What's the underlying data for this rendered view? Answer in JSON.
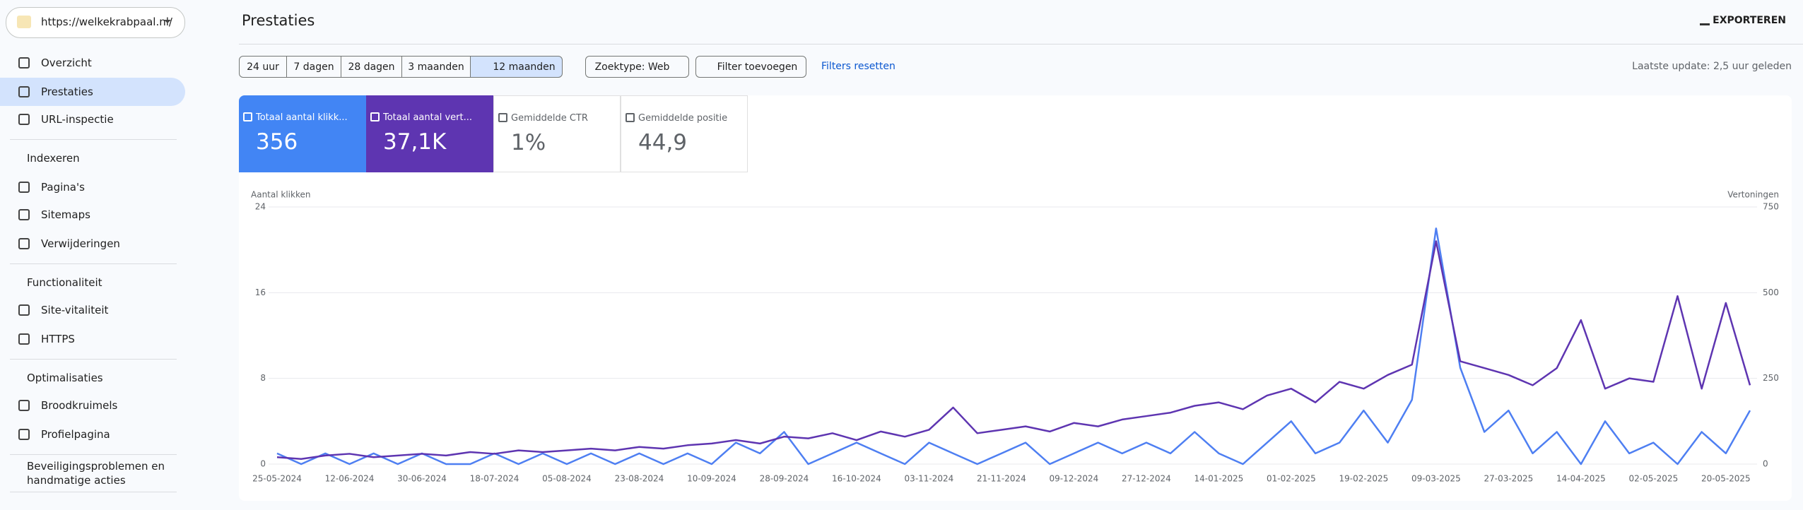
{
  "sidebar": {
    "site": "https://welkekrabpaal.nl/",
    "items": [
      {
        "label": "Overzicht"
      },
      {
        "label": "Prestaties"
      },
      {
        "label": "URL-inspectie"
      },
      {
        "label": "Indexeren"
      },
      {
        "label": "Pagina's"
      },
      {
        "label": "Sitemaps"
      },
      {
        "label": "Verwijderingen"
      },
      {
        "label": "Functionaliteit"
      },
      {
        "label": "Site-vitaliteit"
      },
      {
        "label": "HTTPS"
      },
      {
        "label": "Optimalisaties"
      },
      {
        "label": "Broodkruimels"
      },
      {
        "label": "Profielpagina"
      },
      {
        "label": "Beveiligingsproblemen en handmatige acties"
      }
    ]
  },
  "header": {
    "title": "Prestaties",
    "export": "EXPORTEREN"
  },
  "filters": {
    "ranges": [
      "24 uur",
      "7 dagen",
      "28 dagen",
      "3 maanden",
      "12 maanden"
    ],
    "search_type": "Zoektype: Web",
    "add_filter": "Filter toevoegen",
    "reset": "Filters resetten",
    "last_update": "Laatste update: 2,5 uur geleden"
  },
  "cards": [
    {
      "label": "Totaal aantal klikk...",
      "value": "356"
    },
    {
      "label": "Totaal aantal vert...",
      "value": "37,1K"
    },
    {
      "label": "Gemiddelde CTR",
      "value": "1%"
    },
    {
      "label": "Gemiddelde positie",
      "value": "44,9"
    }
  ],
  "chart_data": {
    "type": "line",
    "ylabel": "Aantal klikken",
    "y2label": "Vertoningen",
    "x": [
      "25-05-2024",
      "31-05-2024",
      "06-06-2024",
      "12-06-2024",
      "18-06-2024",
      "24-06-2024",
      "30-06-2024",
      "06-07-2024",
      "12-07-2024",
      "18-07-2024",
      "24-07-2024",
      "30-07-2024",
      "05-08-2024",
      "11-08-2024",
      "17-08-2024",
      "23-08-2024",
      "29-08-2024",
      "04-09-2024",
      "10-09-2024",
      "16-09-2024",
      "22-09-2024",
      "28-09-2024",
      "04-10-2024",
      "10-10-2024",
      "16-10-2024",
      "22-10-2024",
      "28-10-2024",
      "03-11-2024",
      "09-11-2024",
      "15-11-2024",
      "21-11-2024",
      "27-11-2024",
      "03-12-2024",
      "09-12-2024",
      "15-12-2024",
      "21-12-2024",
      "27-12-2024",
      "02-01-2025",
      "08-01-2025",
      "14-01-2025",
      "20-01-2025",
      "26-01-2025",
      "01-02-2025",
      "07-02-2025",
      "13-02-2025",
      "19-02-2025",
      "25-02-2025",
      "03-03-2025",
      "09-03-2025",
      "15-03-2025",
      "21-03-2025",
      "27-03-2025",
      "02-04-2025",
      "08-04-2025",
      "14-04-2025",
      "20-04-2025",
      "26-04-2025",
      "02-05-2025",
      "08-05-2025",
      "14-05-2025",
      "20-05-2025",
      "26-05-2025"
    ],
    "xlim": [
      "25-05-2024",
      "26-05-2025"
    ],
    "xticks": [
      "25-05-2024",
      "12-06-2024",
      "30-06-2024",
      "18-07-2024",
      "05-08-2024",
      "23-08-2024",
      "10-09-2024",
      "28-09-2024",
      "16-10-2024",
      "03-11-2024",
      "21-11-2024",
      "09-12-2024",
      "27-12-2024",
      "14-01-2025",
      "01-02-2025",
      "19-02-2025",
      "09-03-2025",
      "27-03-2025",
      "14-04-2025",
      "02-05-2025",
      "20-05-2025"
    ],
    "ylim": [
      0,
      24
    ],
    "yticks": [
      0,
      8,
      16,
      24
    ],
    "y2lim": [
      0,
      750
    ],
    "y2ticks": [
      0,
      250,
      500,
      750
    ],
    "grid": true,
    "series": [
      {
        "name": "Totaal aantal klikken",
        "color": "#4e7ff2",
        "values": [
          1,
          0,
          1,
          0,
          1,
          0,
          1,
          0,
          0,
          1,
          0,
          1,
          0,
          1,
          0,
          1,
          0,
          1,
          0,
          2,
          1,
          3,
          0,
          1,
          2,
          1,
          0,
          2,
          1,
          0,
          1,
          2,
          0,
          1,
          2,
          1,
          2,
          1,
          3,
          1,
          0,
          2,
          4,
          1,
          2,
          5,
          2,
          6,
          22,
          9,
          3,
          5,
          1,
          3,
          0,
          4,
          1,
          2,
          0,
          3,
          1,
          5
        ]
      },
      {
        "name": "Vertoningen",
        "color": "#5e35b1",
        "axis": "y2",
        "values": [
          20,
          15,
          25,
          30,
          20,
          25,
          30,
          25,
          35,
          30,
          40,
          35,
          40,
          45,
          40,
          50,
          45,
          55,
          60,
          70,
          60,
          80,
          75,
          90,
          70,
          95,
          80,
          100,
          165,
          90,
          100,
          110,
          95,
          120,
          110,
          130,
          140,
          150,
          170,
          180,
          160,
          200,
          220,
          180,
          240,
          220,
          260,
          290,
          650,
          300,
          280,
          260,
          230,
          280,
          420,
          220,
          250,
          240,
          490,
          220,
          470,
          230
        ]
      }
    ]
  }
}
